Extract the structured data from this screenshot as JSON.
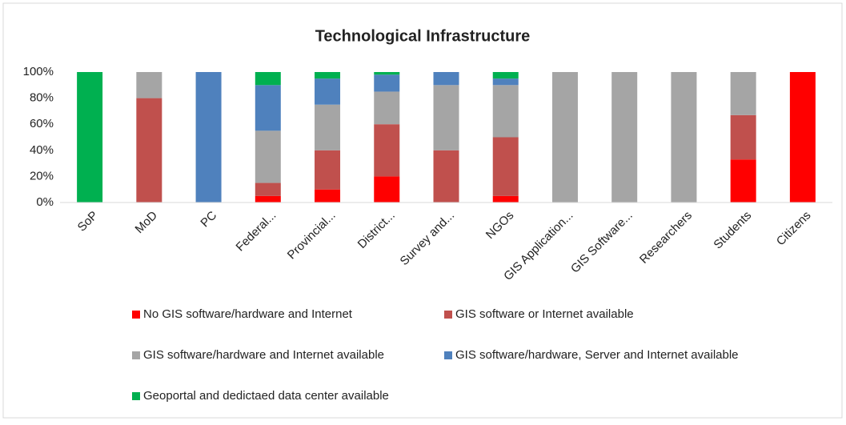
{
  "chart_data": {
    "type": "stacked_bar",
    "title": "Technological Infrastructure",
    "categories": [
      "SoP",
      "MoD",
      "PC",
      "Federal...",
      "Provincial...",
      "District...",
      "Survey and...",
      "NGOs",
      "GIS Application...",
      "GIS Software...",
      "Researchers",
      "Students",
      "Citizens"
    ],
    "series": [
      {
        "name": "No GIS software/hardware and Internet",
        "color": "#ff0000",
        "values": [
          0,
          0,
          0,
          5,
          10,
          20,
          0,
          5,
          0,
          0,
          0,
          33,
          100
        ]
      },
      {
        "name": "GIS software or Internet available",
        "color": "#c0504d",
        "values": [
          0,
          80,
          0,
          10,
          30,
          40,
          40,
          45,
          0,
          0,
          0,
          34,
          0
        ]
      },
      {
        "name": "GIS software/hardware and Internet available",
        "color": "#a5a5a5",
        "values": [
          0,
          20,
          0,
          40,
          35,
          25,
          50,
          40,
          100,
          100,
          100,
          33,
          0
        ]
      },
      {
        "name": "GIS software/hardware, Server and Internet available",
        "color": "#4f81bd",
        "values": [
          0,
          0,
          100,
          35,
          20,
          13,
          10,
          5,
          0,
          0,
          0,
          0,
          0
        ]
      },
      {
        "name": "Geoportal and dedictaed data center available",
        "color": "#00b050",
        "values": [
          100,
          0,
          0,
          10,
          5,
          2,
          0,
          5,
          0,
          0,
          0,
          0,
          0
        ]
      }
    ],
    "ylim": [
      0,
      100
    ],
    "yticks": [
      {
        "value": 0,
        "label": "0%"
      },
      {
        "value": 20,
        "label": "20%"
      },
      {
        "value": 40,
        "label": "40%"
      },
      {
        "value": 60,
        "label": "60%"
      },
      {
        "value": 80,
        "label": "80%"
      },
      {
        "value": 100,
        "label": "100%"
      }
    ],
    "grid": false,
    "legend": "bottom"
  }
}
